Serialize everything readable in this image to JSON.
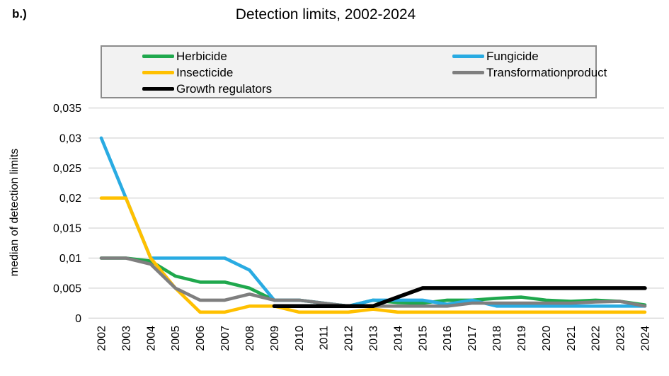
{
  "figure_label": "b.)",
  "title": "Detection limits, 2002-2024",
  "y_axis": {
    "label": "median of detection limits",
    "tick_labels_top_to_bottom": [
      "0,035",
      "0,03",
      "0,025",
      "0,02",
      "0,015",
      "0,01",
      "0,005",
      "0"
    ],
    "tick_values_top_to_bottom": [
      0.035,
      0.03,
      0.025,
      0.02,
      0.015,
      0.01,
      0.005,
      0
    ]
  },
  "x_axis": {
    "tick_labels": [
      "2002",
      "2003",
      "2004",
      "2005",
      "2006",
      "2007",
      "2008",
      "2009",
      "2010",
      "2011",
      "2012",
      "2013",
      "2014",
      "2015",
      "2016",
      "2017",
      "2018",
      "2019",
      "2020",
      "2021",
      "2022",
      "2023",
      "2024"
    ]
  },
  "legend": {
    "columns": 2,
    "row_major_order": [
      "Herbicide",
      "Fungicide",
      "Insecticide",
      "Transformationproduct",
      "Growth regulators"
    ]
  },
  "colors": {
    "gridline": "#d9d9d9",
    "legend_background": "#f2f2f2",
    "legend_border": "#8c8c8c",
    "herbicide": "#1fa84d",
    "fungicide": "#29abe2",
    "insecticide": "#ffc000",
    "transformationproduct": "#7f7f7f",
    "growth_regulators": "#000000"
  },
  "chart_data": {
    "type": "line",
    "title": "Detection limits, 2002-2024",
    "xlabel": "",
    "ylabel": "median of detection limits",
    "ylim": [
      0,
      0.035
    ],
    "grid": true,
    "legend_position": "top",
    "x": [
      2002,
      2003,
      2004,
      2005,
      2006,
      2007,
      2008,
      2009,
      2010,
      2011,
      2012,
      2013,
      2014,
      2015,
      2016,
      2017,
      2018,
      2019,
      2020,
      2021,
      2022,
      2023,
      2024
    ],
    "series": [
      {
        "name": "Herbicide",
        "color": "#1fa84d",
        "values": [
          0.01,
          0.01,
          0.0095,
          0.007,
          0.006,
          0.006,
          0.005,
          0.003,
          0.003,
          0.0025,
          0.002,
          0.003,
          0.0026,
          0.0025,
          0.003,
          0.003,
          0.0033,
          0.0035,
          0.003,
          0.0028,
          0.003,
          0.0028,
          0.0022
        ]
      },
      {
        "name": "Fungicide",
        "color": "#29abe2",
        "values": [
          0.03,
          0.02,
          0.01,
          0.01,
          0.01,
          0.01,
          0.008,
          0.003,
          0.003,
          0.0025,
          0.002,
          0.003,
          0.003,
          0.003,
          0.0023,
          0.003,
          0.002,
          0.002,
          0.002,
          0.002,
          0.002,
          0.002,
          0.002
        ]
      },
      {
        "name": "Insecticide",
        "color": "#ffc000",
        "values": [
          0.02,
          0.02,
          0.01,
          0.005,
          0.001,
          0.001,
          0.002,
          0.002,
          0.001,
          0.001,
          0.001,
          0.0015,
          0.001,
          0.001,
          0.001,
          0.001,
          0.001,
          0.001,
          0.001,
          0.001,
          0.001,
          0.001,
          0.001
        ]
      },
      {
        "name": "Transformationproduct",
        "color": "#7f7f7f",
        "values": [
          0.01,
          0.01,
          0.009,
          0.005,
          0.003,
          0.003,
          0.004,
          0.003,
          0.003,
          0.0025,
          0.002,
          0.002,
          0.002,
          0.002,
          0.002,
          0.0025,
          0.0025,
          0.0025,
          0.0025,
          0.0025,
          0.0027,
          0.0028,
          0.002
        ]
      },
      {
        "name": "Growth regulators",
        "color": "#000000",
        "values": [
          null,
          null,
          null,
          null,
          null,
          null,
          null,
          0.002,
          0.002,
          0.002,
          0.002,
          0.002,
          0.0035,
          0.005,
          0.005,
          0.005,
          0.005,
          0.005,
          0.005,
          0.005,
          0.005,
          0.005,
          0.005
        ]
      }
    ]
  }
}
